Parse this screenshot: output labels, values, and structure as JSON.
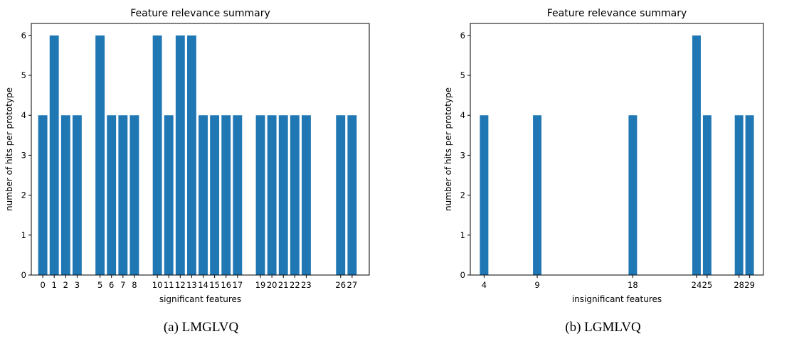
{
  "figures": [
    {
      "caption": "(a) LMGLVQ"
    },
    {
      "caption": "(b) LGMLVQ"
    }
  ],
  "chart_data": [
    {
      "type": "bar",
      "title": "Feature relevance summary",
      "xlabel": "significant  features",
      "ylabel": "number of hits per prototype",
      "x": [
        0,
        1,
        2,
        3,
        5,
        6,
        7,
        8,
        10,
        11,
        12,
        13,
        14,
        15,
        16,
        17,
        19,
        20,
        21,
        22,
        23,
        26,
        27
      ],
      "values": [
        4,
        6,
        4,
        4,
        6,
        4,
        4,
        4,
        6,
        4,
        6,
        6,
        4,
        4,
        4,
        4,
        4,
        4,
        4,
        4,
        4,
        4,
        4
      ],
      "xlim": [
        -1.0,
        28.5
      ],
      "ylim": [
        0,
        6.3
      ],
      "yticks": [
        0,
        1,
        2,
        3,
        4,
        5,
        6
      ],
      "color": "#1f77b4",
      "grid": false
    },
    {
      "type": "bar",
      "title": "Feature relevance summary",
      "xlabel": "insignificant features",
      "ylabel": "number of hits per prototype",
      "x": [
        4,
        9,
        18,
        24,
        25,
        28,
        29
      ],
      "values": [
        4,
        4,
        4,
        6,
        4,
        4,
        4
      ],
      "xlim": [
        2.7,
        30.3
      ],
      "ylim": [
        0,
        6.3
      ],
      "yticks": [
        0,
        1,
        2,
        3,
        4,
        5,
        6
      ],
      "color": "#1f77b4",
      "grid": false
    }
  ]
}
